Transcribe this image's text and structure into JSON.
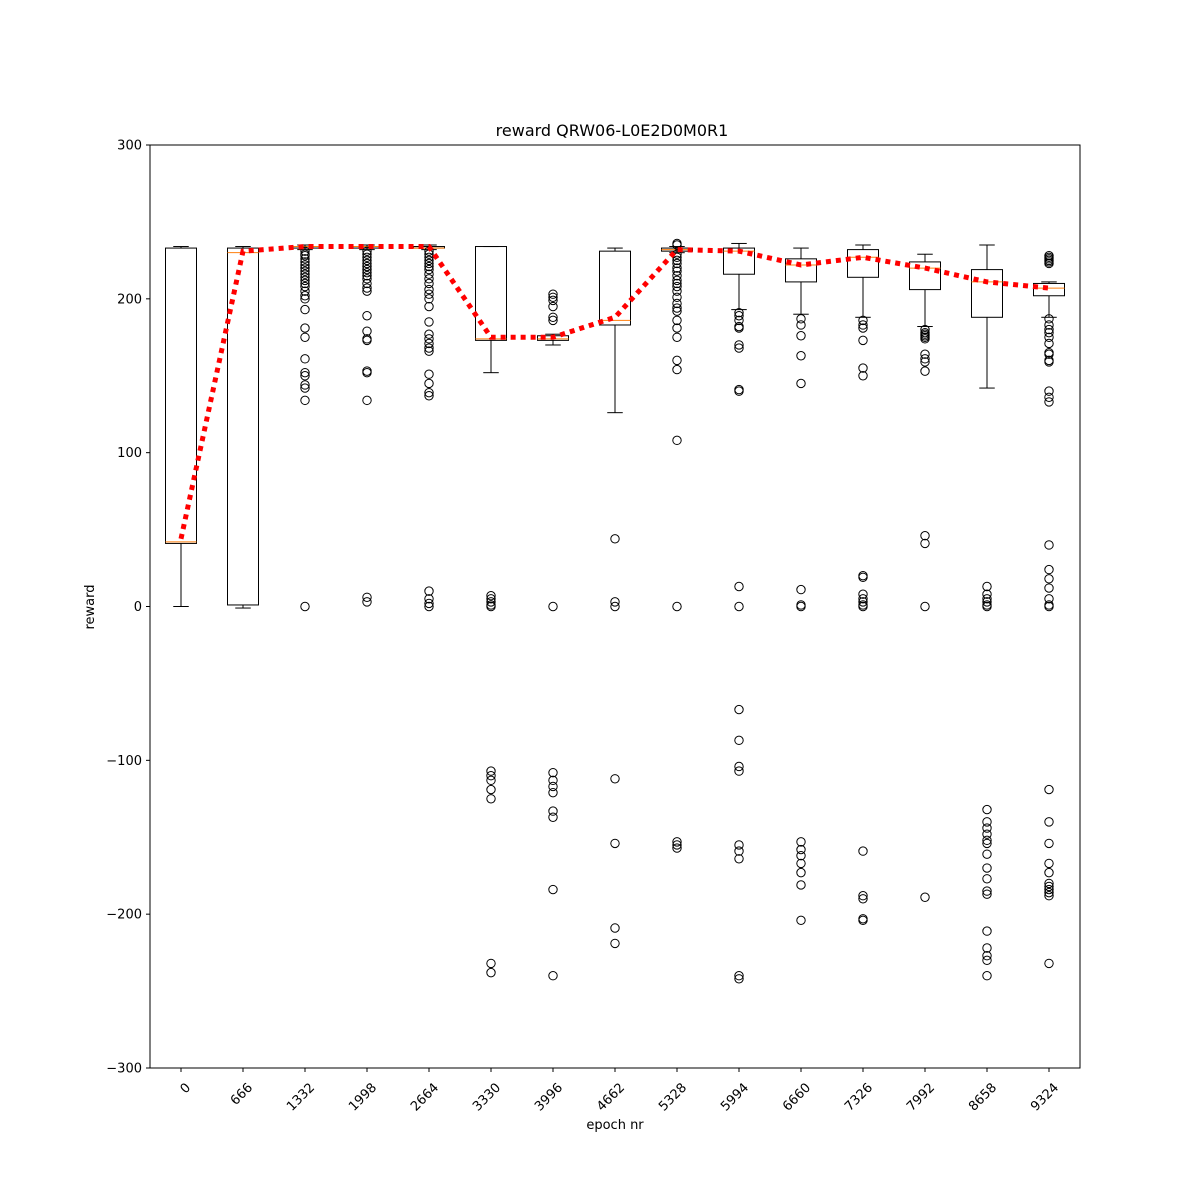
{
  "chart_data": {
    "type": "box",
    "title": "reward QRW06-L0E2D0M0R1",
    "xlabel": "epoch nr",
    "ylabel": "reward",
    "ylim": [
      -300,
      300
    ],
    "yticks": [
      -300,
      -200,
      -100,
      0,
      100,
      200,
      300
    ],
    "grid": false,
    "categories": [
      "0",
      "666",
      "1332",
      "1998",
      "2664",
      "3330",
      "3996",
      "4662",
      "5328",
      "5994",
      "6660",
      "7326",
      "7992",
      "8658",
      "9324"
    ],
    "boxes": [
      {
        "whisker_low": 0,
        "q1": 41,
        "median": 42,
        "q3": 233,
        "whisker_high": 234,
        "outliers": []
      },
      {
        "whisker_low": -1,
        "q1": 1,
        "median": 230,
        "q3": 233,
        "whisker_high": 234,
        "outliers": []
      },
      {
        "whisker_low": 232,
        "q1": 233,
        "median": 234,
        "q3": 234,
        "whisker_high": 235,
        "outliers": [
          231,
          229,
          228,
          226,
          224,
          222,
          220,
          218,
          216,
          214,
          212,
          210,
          208,
          205,
          202,
          200,
          193,
          181,
          175,
          161,
          152,
          150,
          144,
          142,
          134,
          0
        ]
      },
      {
        "whisker_low": 232,
        "q1": 233,
        "median": 234,
        "q3": 234,
        "whisker_high": 235,
        "outliers": [
          231,
          229,
          227,
          225,
          223,
          221,
          219,
          217,
          215,
          213,
          210,
          207,
          205,
          189,
          179,
          174,
          173,
          153,
          152,
          134,
          6,
          3
        ]
      },
      {
        "whisker_low": 232,
        "q1": 233,
        "median": 233,
        "q3": 234,
        "whisker_high": 235,
        "outliers": [
          231,
          229,
          227,
          225,
          223,
          221,
          219,
          216,
          213,
          210,
          206,
          203,
          200,
          195,
          185,
          177,
          174,
          171,
          168,
          166,
          151,
          145,
          139,
          137,
          10,
          5,
          2,
          0
        ]
      },
      {
        "whisker_low": 152,
        "q1": 173,
        "median": 174,
        "q3": 234,
        "whisker_high": 234,
        "outliers": [
          7,
          5,
          3,
          1,
          0,
          -107,
          -110,
          -113,
          -119,
          -125,
          -232,
          -238
        ]
      },
      {
        "whisker_low": 170,
        "q1": 173,
        "median": 174,
        "q3": 176,
        "whisker_high": 177,
        "outliers": [
          203,
          201,
          199,
          195,
          188,
          186,
          0,
          -108,
          -113,
          -117,
          -121,
          -133,
          -137,
          -184,
          -240
        ]
      },
      {
        "whisker_low": 126,
        "q1": 183,
        "median": 186,
        "q3": 231,
        "whisker_high": 233,
        "outliers": [
          44,
          3,
          0,
          -112,
          -154,
          -209,
          -219
        ]
      },
      {
        "whisker_low": 230,
        "q1": 231,
        "median": 232,
        "q3": 233,
        "whisker_high": 234,
        "outliers": [
          236,
          235,
          229,
          227,
          225,
          223,
          220,
          218,
          215,
          212,
          210,
          208,
          205,
          201,
          197,
          194,
          192,
          186,
          181,
          175,
          160,
          154,
          108,
          0,
          -153,
          -155,
          -157
        ]
      },
      {
        "whisker_low": 193,
        "q1": 216,
        "median": 231,
        "q3": 233,
        "whisker_high": 236,
        "outliers": [
          191,
          189,
          186,
          182,
          181,
          170,
          168,
          141,
          140,
          13,
          0,
          -67,
          -87,
          -104,
          -107,
          -155,
          -159,
          -164,
          -240,
          -242
        ]
      },
      {
        "whisker_low": 190,
        "q1": 211,
        "median": 222,
        "q3": 226,
        "whisker_high": 233,
        "outliers": [
          187,
          183,
          176,
          163,
          145,
          11,
          1,
          0,
          -153,
          -158,
          -162,
          -167,
          -173,
          -181,
          -204
        ]
      },
      {
        "whisker_low": 188,
        "q1": 214,
        "median": 227,
        "q3": 232,
        "whisker_high": 235,
        "outliers": [
          186,
          183,
          181,
          173,
          155,
          150,
          20,
          19,
          8,
          5,
          3,
          1,
          0,
          -159,
          -188,
          -190,
          -203,
          -204
        ]
      },
      {
        "whisker_low": 182,
        "q1": 206,
        "median": 220,
        "q3": 224,
        "whisker_high": 229,
        "outliers": [
          180,
          178,
          177,
          176,
          175,
          174,
          164,
          161,
          159,
          153,
          46,
          41,
          0,
          -189
        ]
      },
      {
        "whisker_low": 142,
        "q1": 188,
        "median": 211,
        "q3": 219,
        "whisker_high": 235,
        "outliers": [
          13,
          8,
          5,
          3,
          1,
          0,
          -132,
          -140,
          -144,
          -148,
          -152,
          -154,
          -161,
          -170,
          -177,
          -185,
          -187,
          -211,
          -222,
          -227,
          -230,
          -240
        ]
      },
      {
        "whisker_low": 188,
        "q1": 202,
        "median": 207,
        "q3": 210,
        "whisker_high": 211,
        "outliers": [
          228,
          227,
          226,
          225,
          224,
          223,
          187,
          183,
          180,
          178,
          175,
          171,
          165,
          164,
          160,
          159,
          140,
          136,
          133,
          40,
          24,
          18,
          12,
          5,
          1,
          0,
          -119,
          -140,
          -154,
          -167,
          -173,
          -180,
          -182,
          -184,
          -186,
          -188,
          -232
        ]
      }
    ],
    "mean_line": {
      "values": [
        44,
        231,
        234,
        234,
        234,
        175,
        175,
        188,
        232,
        231,
        222,
        227,
        220,
        211,
        207
      ],
      "color": "#ff0000",
      "style": "dotted"
    },
    "colors": {
      "box": "#000000",
      "median": "#ff7f0e",
      "mean_line": "#ff0000"
    }
  }
}
